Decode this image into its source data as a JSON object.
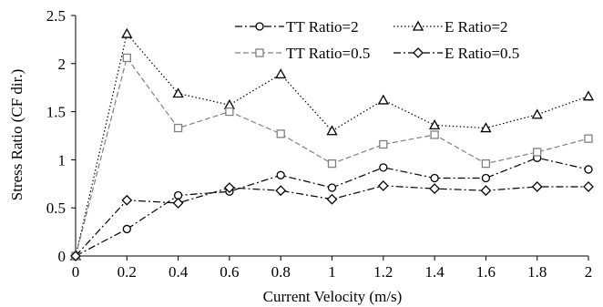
{
  "chart_data": {
    "type": "line",
    "xlabel": "Current Velocity (m/s)",
    "ylabel": "Stress Ratio (CF dir.)",
    "xlim": [
      0,
      2
    ],
    "ylim": [
      0,
      2.5
    ],
    "x_ticks": [
      "0",
      "0.2",
      "0.4",
      "0.6",
      "0.8",
      "1",
      "1.2",
      "1.4",
      "1.6",
      "1.8",
      "2"
    ],
    "y_ticks": [
      "0",
      "0.5",
      "1",
      "1.5",
      "2",
      "2.5"
    ],
    "grid": false,
    "legend_position": "top-center",
    "x": [
      0,
      0.2,
      0.4,
      0.6,
      0.8,
      1.0,
      1.2,
      1.4,
      1.6,
      1.8,
      2.0
    ],
    "series": [
      {
        "name": "TT Ratio=2",
        "marker": "circle",
        "line_style": "dash-dot",
        "color": "#000000",
        "values": [
          0,
          0.28,
          0.63,
          0.67,
          0.84,
          0.71,
          0.92,
          0.81,
          0.81,
          1.02,
          0.9
        ]
      },
      {
        "name": "E Ratio=2",
        "marker": "triangle",
        "line_style": "dotted",
        "color": "#000000",
        "values": [
          0,
          2.31,
          1.69,
          1.57,
          1.89,
          1.3,
          1.62,
          1.36,
          1.33,
          1.47,
          1.66
        ]
      },
      {
        "name": "TT Ratio=0.5",
        "marker": "square",
        "line_style": "dashed",
        "color": "#808080",
        "values": [
          0,
          2.06,
          1.33,
          1.5,
          1.27,
          0.96,
          1.16,
          1.26,
          0.96,
          1.08,
          1.22
        ]
      },
      {
        "name": "E Ratio=0.5",
        "marker": "diamond",
        "line_style": "dash-dot",
        "color": "#000000",
        "values": [
          0,
          0.58,
          0.55,
          0.71,
          0.68,
          0.59,
          0.73,
          0.7,
          0.68,
          0.72,
          0.72
        ]
      }
    ]
  }
}
